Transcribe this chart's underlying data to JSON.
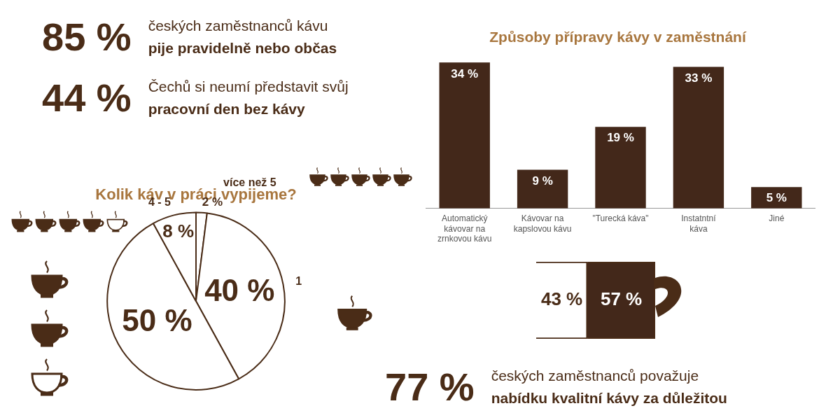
{
  "chart_data": [
    {
      "type": "other",
      "annotations": [
        "85 %",
        "českých zaměstnanců kávu",
        "pije pravidelně nebo občas",
        "44 %",
        "Čechů si neumí představit svůj",
        "pracovní den bez kávy"
      ]
    },
    {
      "type": "pie",
      "title": "Kolik káv v práci vypijeme?",
      "categories": [
        "více než 5",
        "1",
        null,
        "4 - 5"
      ],
      "values": [
        2,
        40,
        50,
        8
      ],
      "colors": [
        "#ffffff",
        "#ffffff",
        "#ffffff",
        "#ffffff"
      ],
      "value_labels": [
        "2 %",
        "40 %",
        "50 %",
        "8 %"
      ]
    },
    {
      "type": "bar",
      "title": "Způsoby přípravy kávy v zaměstnání",
      "categories": [
        "Automatický kávovar na zrnkovou kávu",
        "Kávovar na kapslovou kávu",
        "\"Turecká káva\"",
        "Instatntní káva",
        "Jiné"
      ],
      "values": [
        34,
        9,
        19,
        33,
        5
      ],
      "color": "#43281a",
      "value_labels": [
        "34 %",
        "9 %",
        "19 %",
        "33 %",
        "5 %"
      ]
    },
    {
      "type": "other",
      "categories": [
        null,
        null
      ],
      "values": [
        43,
        57
      ],
      "colors": [
        "#ffffff",
        "#43281a"
      ],
      "value_labels": [
        "43 %",
        "57 %"
      ]
    },
    {
      "type": "other",
      "annotations": [
        "77 %",
        "českých zaměstnanců považuje",
        "nabídku kvalitní kávy za důležitou"
      ]
    }
  ]
}
